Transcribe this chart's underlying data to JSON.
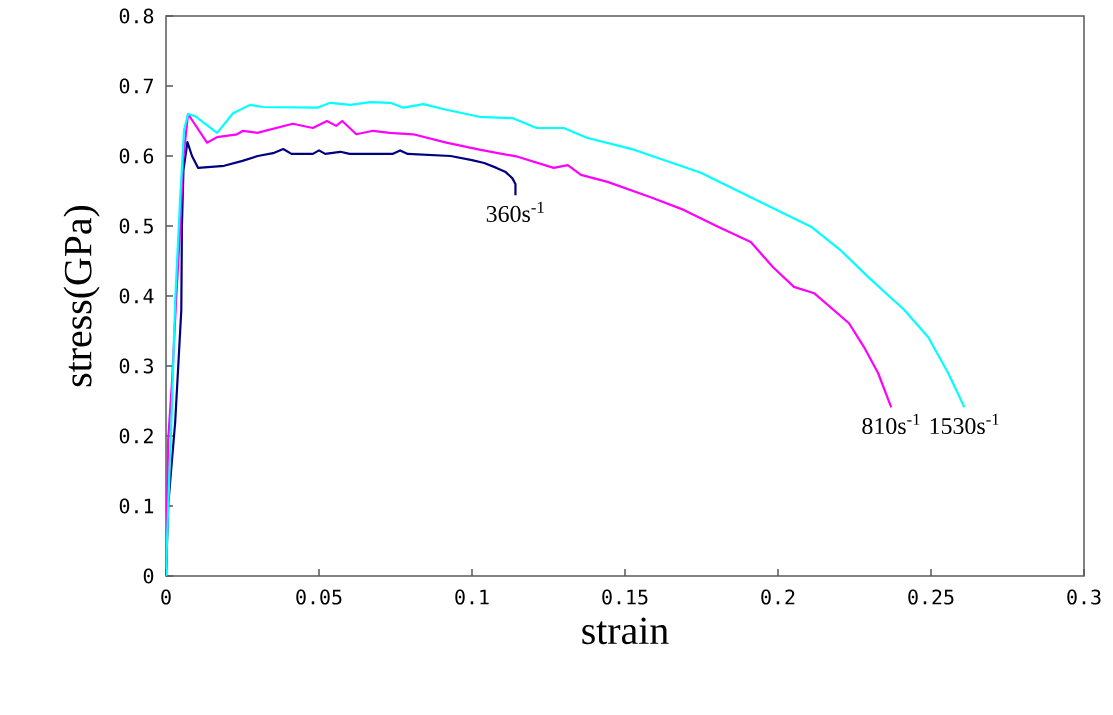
{
  "chart_data": {
    "type": "line",
    "xlabel": "strain",
    "ylabel": "stress(GPa)",
    "xlim": [
      0,
      0.3
    ],
    "ylim": [
      0,
      0.8
    ],
    "xticks": [
      0,
      0.05,
      0.1,
      0.15,
      0.2,
      0.25,
      0.3
    ],
    "yticks": [
      0,
      0.1,
      0.2,
      0.3,
      0.4,
      0.5,
      0.6,
      0.7,
      0.8
    ],
    "grid": false,
    "marker": "none",
    "line_style": "solid",
    "series": [
      {
        "name": "360s$^{-1}$",
        "color": "#000080",
        "x": [
          0,
          0.0007,
          0.003,
          0.005,
          0.0052,
          0.0057,
          0.007,
          0.0085,
          0.0105,
          0.019,
          0.025,
          0.03,
          0.035,
          0.0383,
          0.041,
          0.048,
          0.05,
          0.052,
          0.057,
          0.06,
          0.074,
          0.0765,
          0.079,
          0.093,
          0.1,
          0.104,
          0.108,
          0.111,
          0.1125,
          0.1132,
          0.1142,
          0.1142
        ],
        "values": [
          0,
          0.1,
          0.22,
          0.38,
          0.5,
          0.58,
          0.62,
          0.6,
          0.583,
          0.586,
          0.593,
          0.6,
          0.604,
          0.61,
          0.603,
          0.603,
          0.608,
          0.603,
          0.606,
          0.603,
          0.603,
          0.608,
          0.603,
          0.6,
          0.594,
          0.59,
          0.583,
          0.577,
          0.571,
          0.568,
          0.56,
          0.544
        ]
      },
      {
        "name": "810s$^{-1}$",
        "color": "#ff00ff",
        "x": [
          0,
          0.0007,
          0.002,
          0.0033,
          0.0046,
          0.0056,
          0.0072,
          0.0134,
          0.0167,
          0.0232,
          0.0252,
          0.0298,
          0.0414,
          0.048,
          0.0526,
          0.0556,
          0.0576,
          0.0622,
          0.0677,
          0.073,
          0.0808,
          0.0916,
          0.1024,
          0.1149,
          0.1267,
          0.1313,
          0.1356,
          0.1443,
          0.1584,
          0.1692,
          0.1804,
          0.1911,
          0.1984,
          0.2052,
          0.2118,
          0.2232,
          0.2281,
          0.2327,
          0.237
        ],
        "values": [
          0,
          0.194,
          0.28,
          0.394,
          0.494,
          0.594,
          0.66,
          0.619,
          0.627,
          0.631,
          0.636,
          0.633,
          0.646,
          0.64,
          0.65,
          0.643,
          0.65,
          0.631,
          0.636,
          0.633,
          0.631,
          0.619,
          0.609,
          0.599,
          0.583,
          0.587,
          0.573,
          0.563,
          0.541,
          0.523,
          0.499,
          0.477,
          0.441,
          0.413,
          0.404,
          0.361,
          0.327,
          0.29,
          0.241
        ]
      },
      {
        "name": "1530s$^{-1}$",
        "color": "#00ffff",
        "x": [
          0,
          0.0003,
          0.002,
          0.003,
          0.0046,
          0.0059,
          0.0072,
          0.0095,
          0.0167,
          0.0219,
          0.0275,
          0.0317,
          0.0494,
          0.0537,
          0.0602,
          0.0668,
          0.0733,
          0.0776,
          0.0841,
          0.0916,
          0.1024,
          0.1134,
          0.1211,
          0.13,
          0.1375,
          0.1529,
          0.1748,
          0.1911,
          0.2108,
          0.2203,
          0.2295,
          0.2413,
          0.2491,
          0.2556,
          0.2609
        ],
        "values": [
          0,
          0.047,
          0.251,
          0.394,
          0.537,
          0.637,
          0.66,
          0.657,
          0.633,
          0.661,
          0.673,
          0.67,
          0.669,
          0.676,
          0.673,
          0.677,
          0.676,
          0.669,
          0.674,
          0.666,
          0.656,
          0.654,
          0.64,
          0.64,
          0.626,
          0.609,
          0.576,
          0.541,
          0.499,
          0.466,
          0.427,
          0.38,
          0.341,
          0.29,
          0.241
        ]
      }
    ]
  }
}
